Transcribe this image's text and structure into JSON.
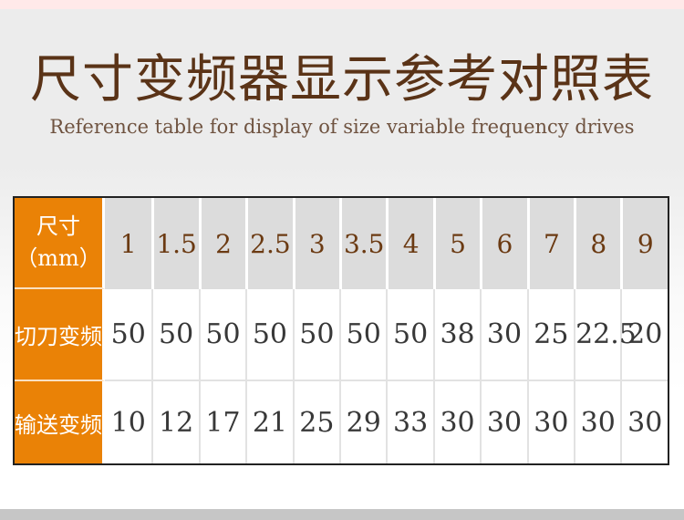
{
  "page": {
    "title": "尺寸变频器显示参考对照表",
    "subtitle": "Reference table for display of size variable frequency drives"
  },
  "colors": {
    "accent_orange": "#EA8206",
    "title_brown": "#5A3317",
    "subtitle_brown": "#6F5340",
    "size_number_brown": "#6B3A12",
    "size_cell_gray": "#DCDCDC",
    "value_text_dark": "#383838",
    "top_strip_pink": "#FFE9E9",
    "bottom_strip_gray": "#C6C6C6",
    "table_border_dark": "#222222"
  },
  "table": {
    "corner_header": {
      "line1": "尺寸",
      "line2": "（mm）"
    },
    "size_columns": [
      "1",
      "1.5",
      "2",
      "2.5",
      "3",
      "3.5",
      "4",
      "5",
      "6",
      "7",
      "8",
      "9"
    ],
    "rows": [
      {
        "label": "切刀变频",
        "values": [
          "50",
          "50",
          "50",
          "50",
          "50",
          "50",
          "50",
          "38",
          "30",
          "25",
          "22.5",
          "20"
        ]
      },
      {
        "label": "输送变频",
        "values": [
          "10",
          "12",
          "17",
          "21",
          "25",
          "29",
          "33",
          "30",
          "30",
          "30",
          "30",
          "30"
        ]
      }
    ]
  },
  "chart_data": {
    "type": "table",
    "title": "尺寸变频器显示参考对照表",
    "subtitle": "Reference table for display of size variable frequency drives",
    "row_header": "尺寸（mm）",
    "categories": [
      1,
      1.5,
      2,
      2.5,
      3,
      3.5,
      4,
      5,
      6,
      7,
      8,
      9
    ],
    "series": [
      {
        "name": "切刀变频",
        "values": [
          50,
          50,
          50,
          50,
          50,
          50,
          50,
          38,
          30,
          25,
          22.5,
          20
        ]
      },
      {
        "name": "输送变频",
        "values": [
          10,
          12,
          17,
          21,
          25,
          29,
          33,
          30,
          30,
          30,
          30,
          30
        ]
      }
    ],
    "legend_position": "none",
    "grid": true
  }
}
